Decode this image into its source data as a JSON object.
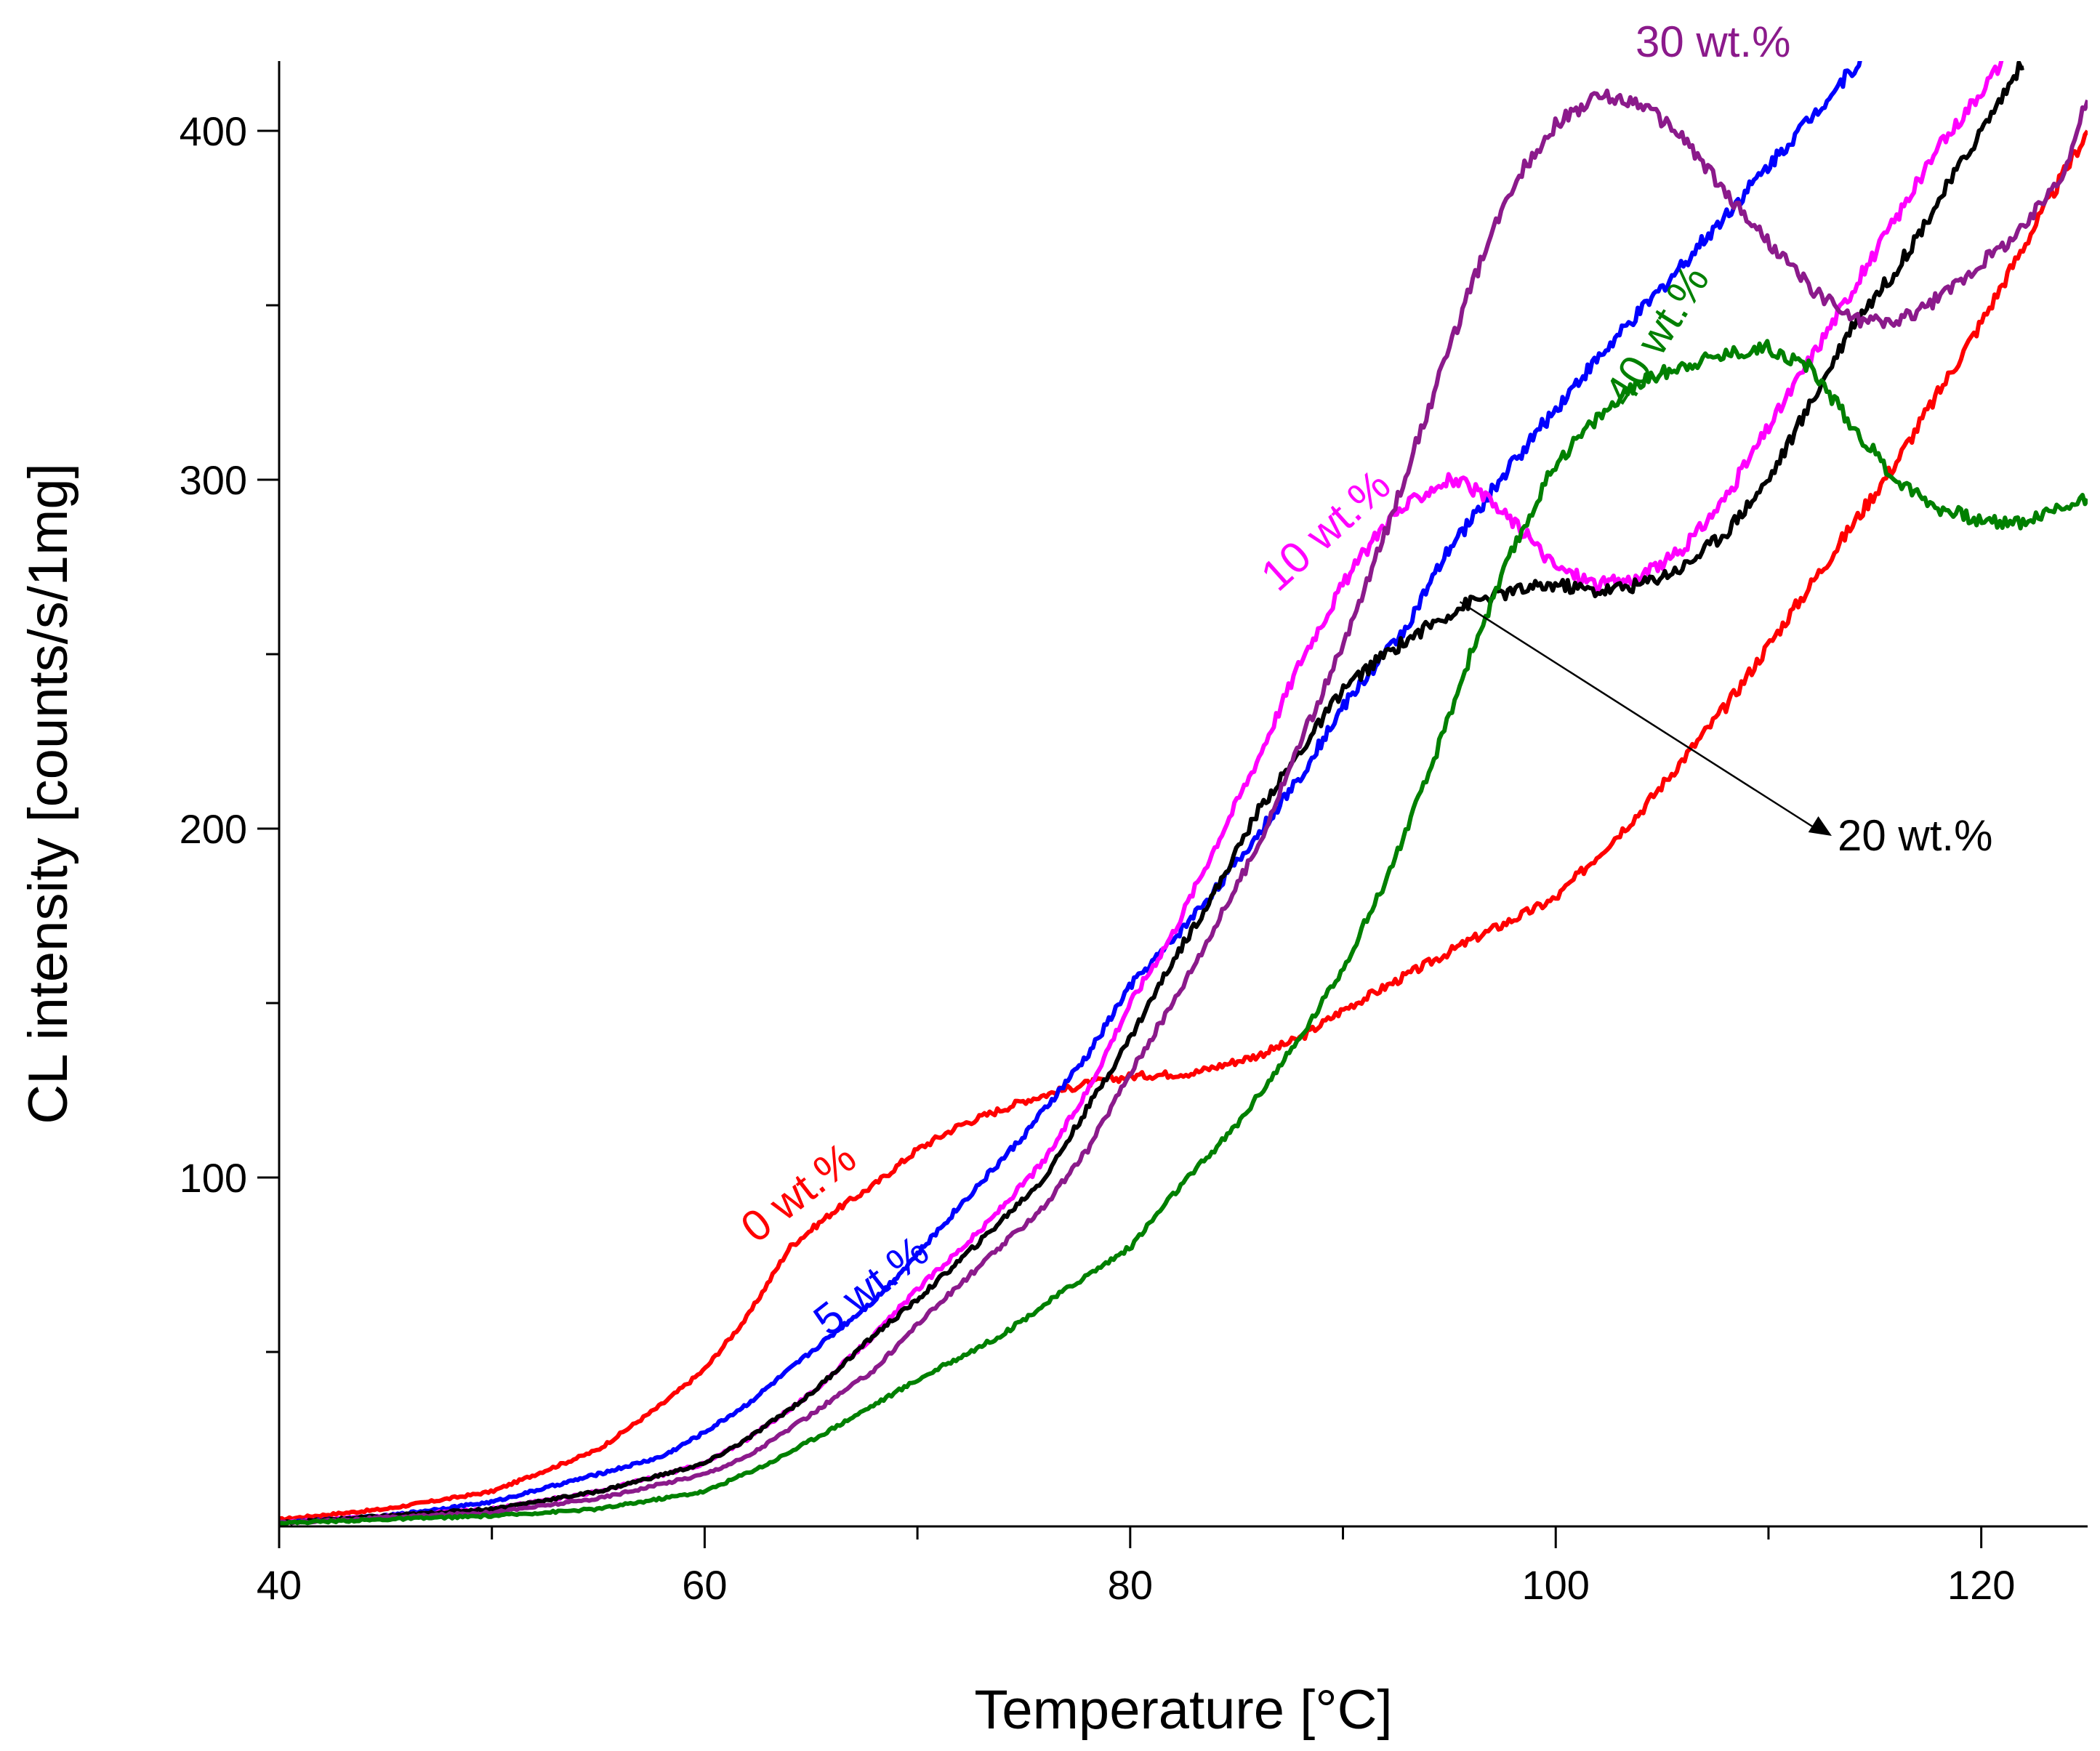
{
  "chart_data": {
    "type": "line",
    "title": "",
    "xlabel": "Temperature [°C]",
    "ylabel": "CL intensity [counts/s/1mg]",
    "xlim": [
      40,
      125
    ],
    "ylim": [
      0,
      420
    ],
    "x_ticks": [
      40,
      60,
      80,
      100,
      120
    ],
    "x_tick_labels": [
      "40",
      "60",
      "80",
      "100",
      "120"
    ],
    "y_ticks": [
      100,
      200,
      300,
      400
    ],
    "y_tick_labels": [
      "100",
      "200",
      "300",
      "400"
    ],
    "grid": false,
    "series": [
      {
        "name": "0 wt.%",
        "label": "0 wt.%",
        "color": "#ff0000",
        "x": [
          40,
          45,
          50,
          55,
          58,
          60,
          62,
          64,
          66,
          68,
          70,
          72,
          75,
          78,
          80,
          83,
          86,
          88,
          90,
          93,
          96,
          100,
          104,
          108,
          112,
          116,
          120,
          125
        ],
        "y": [
          2,
          5,
          10,
          22,
          35,
          45,
          60,
          80,
          90,
          98,
          108,
          115,
          122,
          127,
          129,
          130,
          135,
          140,
          148,
          158,
          168,
          180,
          205,
          235,
          270,
          305,
          345,
          400
        ]
      },
      {
        "name": "5 wt.%",
        "label": "5 wt.%",
        "color": "#0000ff",
        "x": [
          40,
          45,
          50,
          55,
          58,
          60,
          62,
          65,
          68,
          70,
          72,
          75,
          78,
          80,
          82,
          85,
          88,
          90,
          93,
          95,
          98,
          101,
          105,
          110,
          115
        ],
        "y": [
          1,
          3,
          7,
          15,
          20,
          27,
          35,
          50,
          65,
          78,
          92,
          112,
          135,
          155,
          168,
          190,
          215,
          235,
          258,
          280,
          305,
          328,
          355,
          390,
          425
        ]
      },
      {
        "name": "10 wt.%",
        "label": "10 wt.%",
        "color": "#ff00ff",
        "x": [
          40,
          50,
          55,
          60,
          62,
          65,
          68,
          70,
          73,
          76,
          78,
          80,
          82,
          84,
          86,
          88,
          90,
          92,
          94,
          95,
          96,
          98,
          100,
          102,
          104,
          106,
          108,
          110,
          112,
          115,
          118,
          121
        ],
        "y": [
          1,
          5,
          10,
          18,
          25,
          38,
          55,
          68,
          85,
          105,
          125,
          150,
          170,
          195,
          220,
          248,
          270,
          288,
          297,
          300,
          298,
          288,
          275,
          270,
          272,
          280,
          295,
          315,
          335,
          365,
          395,
          420
        ]
      },
      {
        "name": "20 wt.%",
        "label": "20 wt.%",
        "color": "#000000",
        "x": [
          40,
          50,
          55,
          60,
          62,
          65,
          68,
          70,
          73,
          76,
          78,
          80,
          82,
          84,
          86,
          88,
          90,
          92,
          94,
          96,
          98,
          100,
          102,
          104,
          106,
          108,
          110,
          112,
          114,
          116,
          118,
          120,
          122
        ],
        "y": [
          1,
          5,
          10,
          18,
          25,
          38,
          55,
          65,
          82,
          100,
          120,
          140,
          162,
          182,
          205,
          222,
          240,
          250,
          258,
          265,
          268,
          270,
          268,
          270,
          275,
          285,
          300,
          322,
          345,
          360,
          380,
          400,
          420
        ]
      },
      {
        "name": "30 wt.%",
        "label": "30 wt.%",
        "color": "#8b1a8b",
        "x": [
          40,
          50,
          55,
          60,
          62,
          65,
          68,
          70,
          73,
          76,
          78,
          80,
          82,
          84,
          86,
          88,
          90,
          92,
          94,
          96,
          98,
          100,
          102,
          104,
          106,
          108,
          110,
          112,
          114,
          116,
          118,
          120,
          122,
          124,
          125
        ],
        "y": [
          1,
          4,
          8,
          15,
          20,
          32,
          45,
          58,
          75,
          92,
          108,
          130,
          150,
          172,
          195,
          225,
          252,
          285,
          320,
          355,
          385,
          402,
          410,
          408,
          398,
          382,
          368,
          355,
          346,
          345,
          352,
          362,
          372,
          390,
          410
        ]
      },
      {
        "name": "40 wt.%",
        "label": "40 wt.%",
        "color": "#008000",
        "x": [
          40,
          50,
          55,
          60,
          63,
          66,
          70,
          74,
          77,
          80,
          82,
          85,
          88,
          90,
          92,
          94,
          96,
          98,
          100,
          102,
          104,
          106,
          108,
          110,
          112,
          114,
          116,
          118,
          120,
          122,
          125
        ],
        "y": [
          1,
          3,
          5,
          10,
          18,
          28,
          42,
          55,
          68,
          80,
          95,
          115,
          140,
          160,
          185,
          215,
          250,
          280,
          305,
          318,
          328,
          333,
          336,
          338,
          332,
          315,
          300,
          292,
          288,
          288,
          295
        ]
      }
    ],
    "annotations": [
      {
        "text": "0 wt.%",
        "series": "0 wt.%"
      },
      {
        "text": "5 wt.%",
        "series": "5 wt.%"
      },
      {
        "text": "10 wt.%",
        "series": "10 wt.%"
      },
      {
        "text": "20 wt.%",
        "series": "20 wt.%"
      },
      {
        "text": "30 wt.%",
        "series": "30 wt.%"
      },
      {
        "text": "40 wt.%",
        "series": "40 wt.%"
      }
    ]
  }
}
